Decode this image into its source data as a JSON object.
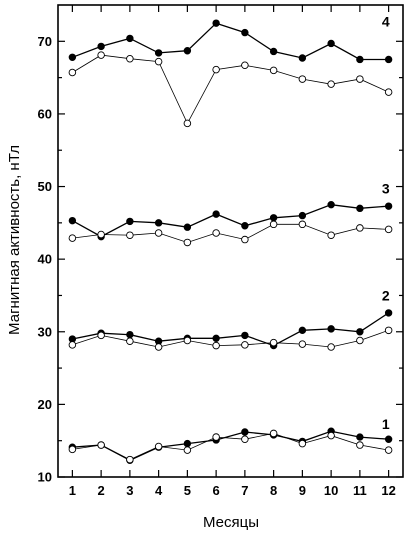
{
  "chart_data": {
    "type": "line",
    "xlabel": "Месяцы",
    "ylabel": "Магнитная активность, нТл",
    "x": [
      1,
      2,
      3,
      4,
      5,
      6,
      7,
      8,
      9,
      10,
      11,
      12
    ],
    "xticks": [
      "1",
      "2",
      "3",
      "4",
      "5",
      "6",
      "7",
      "8",
      "9",
      "10",
      "11",
      "12"
    ],
    "xlim": [
      0.5,
      12.5
    ],
    "ylim": [
      10,
      75
    ],
    "yticks": [
      10,
      20,
      30,
      40,
      50,
      60,
      70
    ],
    "grid": false,
    "series": [
      {
        "group": "1",
        "marker": "filled",
        "values": [
          14.1,
          14.4,
          12.3,
          14.1,
          14.6,
          15.1,
          16.2,
          15.8,
          14.9,
          16.3,
          15.5,
          15.2
        ]
      },
      {
        "group": "1",
        "marker": "open",
        "values": [
          13.8,
          14.4,
          12.4,
          14.2,
          13.7,
          15.5,
          15.2,
          16.0,
          14.6,
          15.7,
          14.4,
          13.7
        ]
      },
      {
        "group": "2",
        "marker": "filled",
        "values": [
          29.0,
          29.8,
          29.6,
          28.7,
          29.1,
          29.1,
          29.5,
          28.1,
          30.2,
          30.4,
          30.0,
          32.6
        ]
      },
      {
        "group": "2",
        "marker": "open",
        "values": [
          28.2,
          29.5,
          28.7,
          27.9,
          28.8,
          28.1,
          28.2,
          28.5,
          28.3,
          27.9,
          28.8,
          30.2
        ]
      },
      {
        "group": "3",
        "marker": "filled",
        "values": [
          45.3,
          43.1,
          45.2,
          45.0,
          44.4,
          46.2,
          44.6,
          45.7,
          46.0,
          47.5,
          47.0,
          47.3
        ]
      },
      {
        "group": "3",
        "marker": "open",
        "values": [
          42.9,
          43.4,
          43.3,
          43.6,
          42.3,
          43.6,
          42.7,
          44.8,
          44.8,
          43.3,
          44.3,
          44.1
        ]
      },
      {
        "group": "4",
        "marker": "filled",
        "values": [
          67.8,
          69.3,
          70.4,
          68.4,
          68.7,
          72.5,
          71.2,
          68.6,
          67.7,
          69.7,
          67.5,
          67.5
        ]
      },
      {
        "group": "4",
        "marker": "open",
        "values": [
          65.7,
          68.1,
          67.6,
          67.2,
          58.7,
          66.1,
          66.7,
          66.0,
          64.8,
          64.1,
          64.8,
          63.0
        ]
      }
    ],
    "annotations": [
      {
        "text": "1",
        "x": 11.9,
        "y": 17.3
      },
      {
        "text": "2",
        "x": 11.9,
        "y": 35.0
      },
      {
        "text": "3",
        "x": 11.9,
        "y": 49.7
      },
      {
        "text": "4",
        "x": 11.9,
        "y": 72.7
      }
    ]
  }
}
